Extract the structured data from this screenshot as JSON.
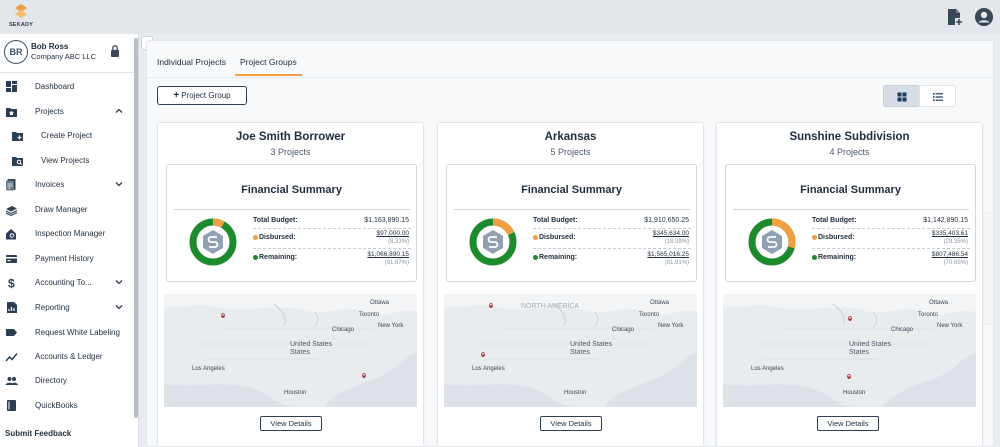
{
  "app": {
    "logo_text": "SEKADY"
  },
  "user": {
    "initials": "BR",
    "name": "Bob Ross",
    "company": "Company ABC LLC"
  },
  "sidebar": {
    "items": [
      {
        "label": "Dashboard",
        "icon": "dashboard-icon"
      },
      {
        "label": "Projects",
        "icon": "folder-home-icon",
        "expanded": true
      },
      {
        "label": "Create Project",
        "icon": "folder-add-icon",
        "sub": true
      },
      {
        "label": "View Projects",
        "icon": "folder-search-icon",
        "sub": true
      },
      {
        "label": "Invoices",
        "icon": "invoices-icon",
        "expandable": true
      },
      {
        "label": "Draw Manager",
        "icon": "money-stack-icon"
      },
      {
        "label": "Inspection Manager",
        "icon": "house-search-icon"
      },
      {
        "label": "Payment History",
        "icon": "payment-icon"
      },
      {
        "label": "Accounting To...",
        "icon": "dollar-icon",
        "expandable": true
      },
      {
        "label": "Reporting",
        "icon": "report-icon",
        "expandable": true
      },
      {
        "label": "Request White Labeling",
        "icon": "label-icon"
      },
      {
        "label": "Accounts & Ledger",
        "icon": "trend-icon"
      },
      {
        "label": "Directory",
        "icon": "people-icon"
      },
      {
        "label": "QuickBooks",
        "icon": "book-icon"
      }
    ],
    "submit_feedback": "Submit Feedback"
  },
  "tabs": [
    {
      "label": "Individual Projects",
      "active": false
    },
    {
      "label": "Project Groups",
      "active": true
    }
  ],
  "toolbar": {
    "add_group_label": "Project Group"
  },
  "financial": {
    "title": "Financial Summary",
    "total_label": "Total Budget:",
    "disbursed_label": "Disbursed:",
    "remaining_label": "Remaining:"
  },
  "view_details_label": "View Details",
  "map_labels": {
    "ottawa": "Ottawa",
    "toronto": "Toronto",
    "new_york": "New York",
    "chicago": "Chicago",
    "united_states": "United States",
    "los_angeles": "Los Angeles",
    "houston": "Houston",
    "north_america": "NORTH AMERICA"
  },
  "colors": {
    "accent": "#f0a040",
    "remaining": "#1e8a2e",
    "disbursed": "#f0a040",
    "brand_dark": "#1f2d3d"
  },
  "groups": [
    {
      "name": "Joe Smith Borrower",
      "count": "3 Projects",
      "total": "$1,163,890.15",
      "disbursed": "$97,000.00",
      "disbursed_pct": "(8.33%)",
      "remaining": "$1,066,890.15",
      "remaining_pct": "(91.67%)",
      "disbursed_fraction": 0.0833
    },
    {
      "name": "Arkansas",
      "count": "5 Projects",
      "total": "$1,910,650.25",
      "disbursed": "$345,634.00",
      "disbursed_pct": "(18.09%)",
      "remaining": "$1,565,016.25",
      "remaining_pct": "(81.91%)",
      "disbursed_fraction": 0.1809
    },
    {
      "name": "Sunshine Subdivision",
      "count": "4 Projects",
      "total": "$1,142,890.15",
      "disbursed": "$335,403.61",
      "disbursed_pct": "(29.35%)",
      "remaining": "$807,486.54",
      "remaining_pct": "(70.65%)",
      "disbursed_fraction": 0.2935
    }
  ]
}
